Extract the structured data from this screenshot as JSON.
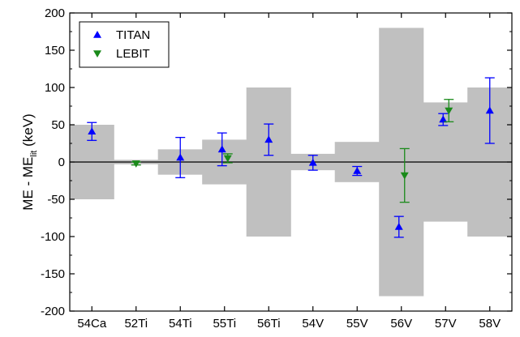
{
  "chart_data": {
    "type": "scatter",
    "title": "",
    "xlabel": "",
    "ylabel": {
      "main": "ME - ME",
      "sub": "lit",
      "tail": " (keV)"
    },
    "categories": [
      "54Ca",
      "52Ti",
      "54Ti",
      "55Ti",
      "56Ti",
      "54V",
      "55V",
      "56V",
      "57V",
      "58V"
    ],
    "ylim": [
      -200,
      200
    ],
    "yticks": [
      -200,
      -150,
      -100,
      -50,
      0,
      50,
      100,
      150,
      200
    ],
    "zero_line": true,
    "grid": false,
    "legend_position": "top-left",
    "uncertainty_band": {
      "color": "#c0c0c0",
      "halfwidths": [
        50,
        3,
        17,
        30,
        100,
        11,
        27,
        180,
        80,
        100
      ]
    },
    "series": [
      {
        "name": "TITAN",
        "marker": "triangle-up",
        "color": "#0000ff",
        "points": [
          {
            "category": "54Ca",
            "y": 41,
            "err": 12
          },
          {
            "category": "54Ti",
            "y": 6,
            "err": 27
          },
          {
            "category": "55Ti",
            "y": 17,
            "err": 22
          },
          {
            "category": "56Ti",
            "y": 30,
            "err": 21
          },
          {
            "category": "54V",
            "y": -1,
            "err": 10
          },
          {
            "category": "55V",
            "y": -12,
            "err": 6
          },
          {
            "category": "56V",
            "y": -87,
            "err": 14
          },
          {
            "category": "57V",
            "y": 57,
            "err": 8
          },
          {
            "category": "58V",
            "y": 69,
            "err": 44
          }
        ]
      },
      {
        "name": "LEBIT",
        "marker": "triangle-down",
        "color": "#1a8a1a",
        "points": [
          {
            "category": "52Ti",
            "y": -2,
            "err": 2
          },
          {
            "category": "55Ti",
            "y": 5,
            "err": 6
          },
          {
            "category": "56V",
            "y": -18,
            "err": 36
          },
          {
            "category": "57V",
            "y": 69,
            "err": 15
          }
        ]
      }
    ]
  }
}
